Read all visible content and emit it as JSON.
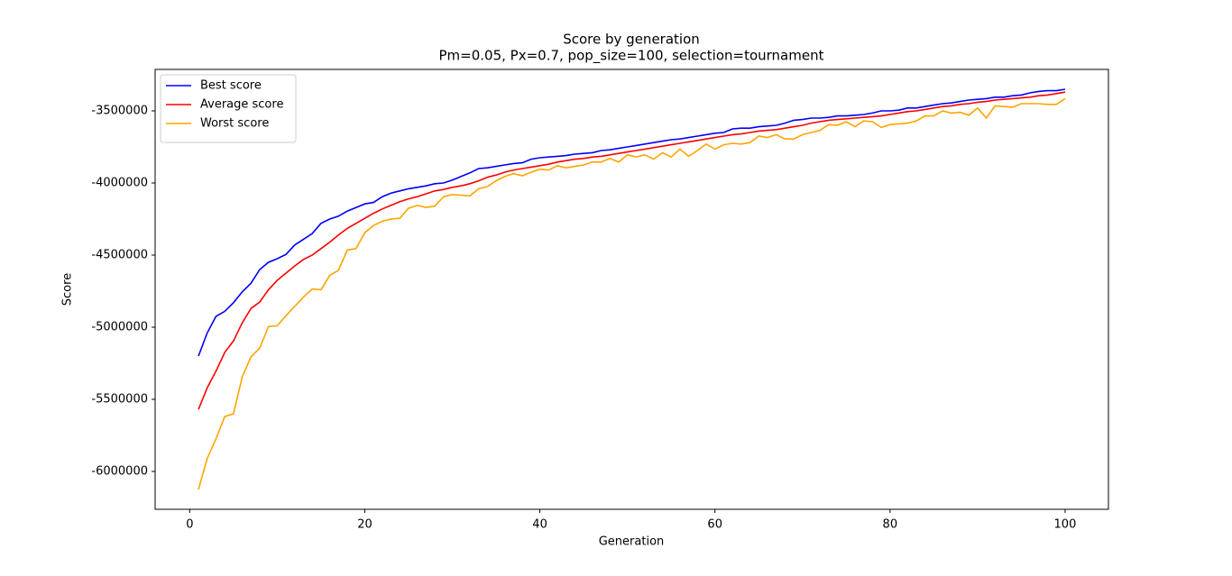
{
  "chart_data": {
    "type": "line",
    "title": "Score by generation",
    "subtitle": "Pm=0.05, Px=0.7, pop_size=100, selection=tournament",
    "x_label": "Generation",
    "y_label": "Score",
    "x": [
      1,
      2,
      3,
      4,
      5,
      6,
      7,
      8,
      9,
      10,
      11,
      12,
      13,
      14,
      15,
      16,
      17,
      18,
      19,
      20,
      21,
      22,
      23,
      24,
      25,
      26,
      27,
      28,
      29,
      30,
      31,
      32,
      33,
      34,
      35,
      36,
      37,
      38,
      39,
      40,
      41,
      42,
      43,
      44,
      45,
      46,
      47,
      48,
      49,
      50,
      51,
      52,
      53,
      54,
      55,
      56,
      57,
      58,
      59,
      60,
      61,
      62,
      63,
      64,
      65,
      66,
      67,
      68,
      69,
      70,
      71,
      72,
      73,
      74,
      75,
      76,
      77,
      78,
      79,
      80,
      81,
      82,
      83,
      84,
      85,
      86,
      87,
      88,
      89,
      90,
      91,
      92,
      93,
      94,
      95,
      96,
      97,
      98,
      99,
      100
    ],
    "series": [
      {
        "name": "Best score",
        "color": "#0000ff",
        "values": [
          -5200000,
          -5040000,
          -4925000,
          -4890000,
          -4830000,
          -4755000,
          -4695000,
          -4600000,
          -4550000,
          -4525000,
          -4495000,
          -4430000,
          -4390000,
          -4350000,
          -4280000,
          -4250000,
          -4230000,
          -4195000,
          -4170000,
          -4145000,
          -4135000,
          -4095000,
          -4070000,
          -4055000,
          -4040000,
          -4030000,
          -4020000,
          -4005000,
          -4000000,
          -3980000,
          -3955000,
          -3930000,
          -3900000,
          -3895000,
          -3885000,
          -3875000,
          -3865000,
          -3860000,
          -3835000,
          -3825000,
          -3820000,
          -3815000,
          -3810000,
          -3800000,
          -3795000,
          -3790000,
          -3775000,
          -3770000,
          -3760000,
          -3750000,
          -3740000,
          -3730000,
          -3720000,
          -3710000,
          -3700000,
          -3695000,
          -3685000,
          -3675000,
          -3665000,
          -3655000,
          -3650000,
          -3625000,
          -3620000,
          -3620000,
          -3610000,
          -3605000,
          -3600000,
          -3585000,
          -3565000,
          -3560000,
          -3550000,
          -3550000,
          -3545000,
          -3535000,
          -3535000,
          -3530000,
          -3525000,
          -3515000,
          -3500000,
          -3500000,
          -3495000,
          -3480000,
          -3480000,
          -3470000,
          -3460000,
          -3450000,
          -3445000,
          -3435000,
          -3425000,
          -3420000,
          -3415000,
          -3405000,
          -3405000,
          -3395000,
          -3390000,
          -3375000,
          -3365000,
          -3360000,
          -3360000,
          -3350000
        ]
      },
      {
        "name": "Average score",
        "color": "#ff0000",
        "values": [
          -5570000,
          -5420000,
          -5305000,
          -5175000,
          -5095000,
          -4970000,
          -4870000,
          -4825000,
          -4740000,
          -4675000,
          -4625000,
          -4575000,
          -4530000,
          -4500000,
          -4455000,
          -4410000,
          -4360000,
          -4315000,
          -4280000,
          -4245000,
          -4210000,
          -4180000,
          -4155000,
          -4130000,
          -4110000,
          -4095000,
          -4075000,
          -4055000,
          -4045000,
          -4030000,
          -4020000,
          -4005000,
          -3985000,
          -3960000,
          -3945000,
          -3925000,
          -3910000,
          -3900000,
          -3890000,
          -3880000,
          -3870000,
          -3855000,
          -3845000,
          -3835000,
          -3830000,
          -3820000,
          -3815000,
          -3805000,
          -3795000,
          -3785000,
          -3775000,
          -3765000,
          -3755000,
          -3745000,
          -3735000,
          -3725000,
          -3715000,
          -3705000,
          -3695000,
          -3685000,
          -3675000,
          -3665000,
          -3660000,
          -3650000,
          -3640000,
          -3635000,
          -3630000,
          -3620000,
          -3610000,
          -3600000,
          -3585000,
          -3575000,
          -3565000,
          -3560000,
          -3555000,
          -3550000,
          -3545000,
          -3540000,
          -3535000,
          -3525000,
          -3515000,
          -3505000,
          -3500000,
          -3490000,
          -3480000,
          -3470000,
          -3465000,
          -3455000,
          -3450000,
          -3440000,
          -3435000,
          -3425000,
          -3420000,
          -3415000,
          -3410000,
          -3405000,
          -3395000,
          -3390000,
          -3380000,
          -3370000
        ]
      },
      {
        "name": "Worst score",
        "color": "#ffa500",
        "values": [
          -6125000,
          -5910000,
          -5775000,
          -5620000,
          -5600000,
          -5345000,
          -5205000,
          -5145000,
          -4995000,
          -4990000,
          -4920000,
          -4855000,
          -4790000,
          -4735000,
          -4740000,
          -4640000,
          -4605000,
          -4465000,
          -4455000,
          -4345000,
          -4295000,
          -4265000,
          -4250000,
          -4245000,
          -4175000,
          -4155000,
          -4170000,
          -4160000,
          -4095000,
          -4080000,
          -4085000,
          -4090000,
          -4040000,
          -4025000,
          -3985000,
          -3955000,
          -3935000,
          -3950000,
          -3925000,
          -3905000,
          -3910000,
          -3880000,
          -3895000,
          -3885000,
          -3875000,
          -3855000,
          -3855000,
          -3830000,
          -3855000,
          -3805000,
          -3820000,
          -3805000,
          -3835000,
          -3790000,
          -3820000,
          -3765000,
          -3815000,
          -3775000,
          -3730000,
          -3765000,
          -3735000,
          -3725000,
          -3730000,
          -3720000,
          -3675000,
          -3685000,
          -3665000,
          -3695000,
          -3695000,
          -3665000,
          -3650000,
          -3635000,
          -3595000,
          -3600000,
          -3575000,
          -3610000,
          -3570000,
          -3575000,
          -3615000,
          -3595000,
          -3590000,
          -3585000,
          -3570000,
          -3535000,
          -3535000,
          -3500000,
          -3515000,
          -3510000,
          -3530000,
          -3480000,
          -3550000,
          -3465000,
          -3470000,
          -3475000,
          -3450000,
          -3450000,
          -3450000,
          -3455000,
          -3455000,
          -3415000
        ]
      }
    ],
    "xlim": [
      -3.95,
      104.95
    ],
    "xticks": [
      0,
      20,
      40,
      60,
      80,
      100
    ],
    "ylim": [
      -6262500,
      -3212500
    ],
    "yticks": [
      -6000000,
      -5500000,
      -5000000,
      -4500000,
      -4000000,
      -3500000
    ],
    "legend": "upper left"
  }
}
